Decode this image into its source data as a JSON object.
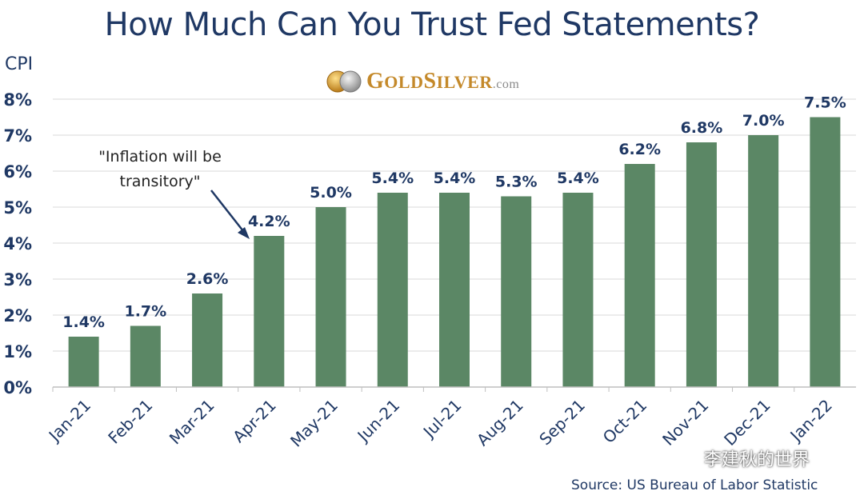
{
  "title": "How Much Can You Trust Fed Statements?",
  "logo": {
    "g": "G",
    "old": "OLD",
    "s": "S",
    "ilver": "ILVER",
    "com": ".com"
  },
  "ylabel_text": "CPI",
  "source": "Source: US Bureau of Labor Statistic",
  "watermark": "李建秋的世界",
  "annotation": {
    "line1": "\"Inflation will be",
    "line2": "transitory\""
  },
  "colors": {
    "bar": "#5b8765",
    "text": "#1f3864",
    "grid": "#d9d9d9"
  },
  "chart_data": {
    "type": "bar",
    "title": "How Much Can You Trust Fed Statements?",
    "ylabel": "CPI",
    "xlabel": "",
    "categories": [
      "Jan-21",
      "Feb-21",
      "Mar-21",
      "Apr-21",
      "May-21",
      "Jun-21",
      "Jul-21",
      "Aug-21",
      "Sep-21",
      "Oct-21",
      "Nov-21",
      "Dec-21",
      "Jan-22"
    ],
    "values": [
      1.4,
      1.7,
      2.6,
      4.2,
      5.0,
      5.4,
      5.4,
      5.3,
      5.4,
      6.2,
      6.8,
      7.0,
      7.5
    ],
    "data_labels": [
      "1.4%",
      "1.7%",
      "2.6%",
      "4.2%",
      "5.0%",
      "5.4%",
      "5.4%",
      "5.3%",
      "5.4%",
      "6.2%",
      "6.8%",
      "7.0%",
      "7.5%"
    ],
    "ylim": [
      0,
      8
    ],
    "yticks": [
      "0%",
      "1%",
      "2%",
      "3%",
      "4%",
      "5%",
      "6%",
      "7%",
      "8%"
    ],
    "grid": true,
    "legend": "none"
  }
}
